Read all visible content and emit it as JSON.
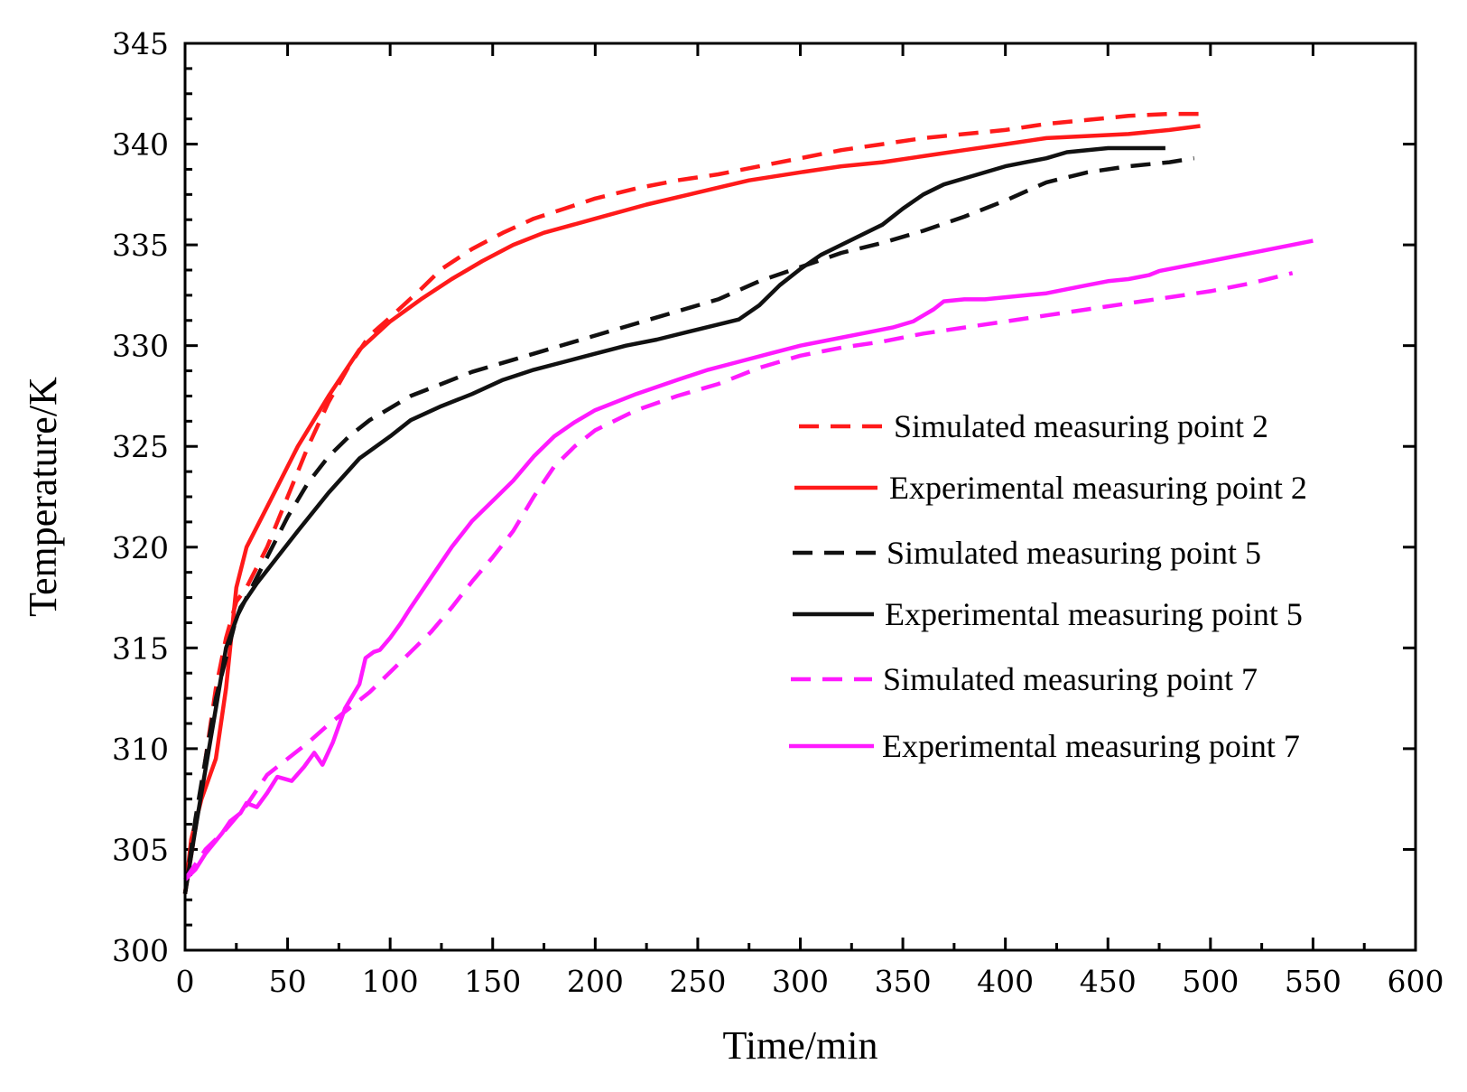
{
  "chart_data": {
    "type": "line",
    "title": "",
    "xlabel": "Time/min",
    "ylabel": "Temperature/K",
    "xlim": [
      0,
      600
    ],
    "ylim": [
      300,
      345
    ],
    "xticks": [
      "0",
      "50",
      "100",
      "150",
      "200",
      "250",
      "300",
      "350",
      "400",
      "450",
      "500",
      "550",
      "600"
    ],
    "yticks": [
      "300",
      "305",
      "310",
      "315",
      "320",
      "325",
      "330",
      "335",
      "340",
      "345"
    ],
    "legend_position": "right",
    "series": [
      {
        "name": "Simulated measuring point 2",
        "color": "#ff1a1a",
        "style": "dashed",
        "x": [
          0,
          5,
          10,
          15,
          20,
          25,
          30,
          40,
          50,
          60,
          70,
          80,
          90,
          100,
          115,
          125,
          140,
          155,
          170,
          185,
          200,
          220,
          240,
          260,
          280,
          300,
          320,
          340,
          360,
          380,
          400,
          420,
          440,
          460,
          480,
          495
        ],
        "y": [
          302.8,
          306,
          309.5,
          313,
          315.5,
          317.3,
          318,
          320,
          322.5,
          325,
          327.2,
          329,
          330.5,
          331.4,
          332.8,
          333.8,
          334.8,
          335.6,
          336.3,
          336.8,
          337.3,
          337.8,
          338.2,
          338.5,
          338.9,
          339.3,
          339.7,
          340,
          340.3,
          340.5,
          340.7,
          341,
          341.2,
          341.4,
          341.5,
          341.5
        ]
      },
      {
        "name": "Experimental measuring point 2",
        "color": "#ff1a1a",
        "style": "solid",
        "x": [
          0,
          3,
          8,
          15,
          20,
          25,
          30,
          40,
          55,
          70,
          85,
          100,
          115,
          130,
          145,
          160,
          175,
          200,
          225,
          250,
          275,
          300,
          320,
          340,
          360,
          380,
          400,
          420,
          440,
          460,
          480,
          495
        ],
        "y": [
          302.8,
          305.5,
          307.5,
          309.5,
          313,
          318,
          320,
          322,
          325,
          327.5,
          329.8,
          331.2,
          332.3,
          333.3,
          334.2,
          335,
          335.6,
          336.3,
          337,
          337.6,
          338.2,
          338.6,
          338.9,
          339.1,
          339.4,
          339.7,
          340,
          340.3,
          340.4,
          340.5,
          340.7,
          340.9
        ]
      },
      {
        "name": "Simulated measuring point 5",
        "color": "#111111",
        "style": "dashed",
        "x": [
          0,
          5,
          10,
          15,
          20,
          25,
          30,
          40,
          50,
          60,
          70,
          80,
          90,
          100,
          110,
          125,
          140,
          160,
          180,
          200,
          220,
          240,
          260,
          280,
          300,
          320,
          340,
          360,
          380,
          400,
          420,
          440,
          460,
          480,
          492
        ],
        "y": [
          302.8,
          306.5,
          309.5,
          312.5,
          314.5,
          316.5,
          317.5,
          319.5,
          321.5,
          323.2,
          324.5,
          325.5,
          326.3,
          326.9,
          327.5,
          328.1,
          328.7,
          329.3,
          329.9,
          330.5,
          331.1,
          331.7,
          332.3,
          333.2,
          333.9,
          334.6,
          335.1,
          335.7,
          336.4,
          337.2,
          338.1,
          338.6,
          338.9,
          339.1,
          339.3
        ]
      },
      {
        "name": "Experimental measuring point 5",
        "color": "#111111",
        "style": "solid",
        "x": [
          0,
          5,
          10,
          15,
          20,
          27,
          35,
          45,
          55,
          70,
          85,
          100,
          110,
          125,
          140,
          155,
          170,
          185,
          200,
          215,
          230,
          250,
          270,
          280,
          290,
          300,
          310,
          320,
          340,
          350,
          360,
          370,
          380,
          400,
          410,
          420,
          430,
          440,
          450,
          465,
          478
        ],
        "y": [
          302.8,
          306,
          309,
          312,
          315,
          317,
          318.2,
          319.5,
          320.8,
          322.7,
          324.4,
          325.5,
          326.3,
          327,
          327.6,
          328.3,
          328.8,
          329.2,
          329.6,
          330,
          330.3,
          330.8,
          331.3,
          332,
          333,
          333.8,
          334.5,
          335,
          336,
          336.8,
          337.5,
          338,
          338.3,
          338.9,
          339.1,
          339.3,
          339.6,
          339.7,
          339.8,
          339.8,
          339.8
        ]
      },
      {
        "name": "Simulated measuring point 7",
        "color": "#ff1aff",
        "style": "dashed",
        "x": [
          0,
          10,
          20,
          30,
          40,
          50,
          60,
          70,
          80,
          90,
          100,
          110,
          120,
          130,
          140,
          150,
          160,
          170,
          180,
          190,
          200,
          220,
          240,
          260,
          280,
          300,
          320,
          340,
          360,
          380,
          400,
          420,
          440,
          460,
          480,
          500,
          520,
          540
        ],
        "y": [
          303.5,
          305,
          306,
          307.2,
          308.7,
          309.5,
          310.3,
          311.2,
          312,
          312.8,
          313.8,
          314.8,
          315.8,
          317,
          318.3,
          319.5,
          320.8,
          322.5,
          324,
          325,
          325.8,
          326.8,
          327.5,
          328.1,
          328.9,
          329.5,
          329.9,
          330.2,
          330.6,
          330.9,
          331.2,
          331.5,
          331.8,
          332.1,
          332.4,
          332.7,
          333.1,
          333.6
        ]
      },
      {
        "name": "Experimental measuring point 7",
        "color": "#ff1aff",
        "style": "solid",
        "x": [
          0,
          5,
          10,
          18,
          22,
          27,
          30,
          35,
          40,
          45,
          52,
          58,
          63,
          67,
          72,
          78,
          85,
          88,
          92,
          95,
          100,
          105,
          110,
          120,
          130,
          140,
          150,
          160,
          170,
          180,
          190,
          200,
          220,
          240,
          255,
          270,
          285,
          300,
          315,
          330,
          345,
          355,
          365,
          370,
          380,
          390,
          400,
          410,
          420,
          430,
          440,
          450,
          460,
          470,
          475,
          490,
          510,
          530,
          550
        ],
        "y": [
          303.5,
          304,
          304.8,
          305.8,
          306.4,
          306.8,
          307.3,
          307.1,
          307.8,
          308.6,
          308.4,
          309.1,
          309.8,
          309.2,
          310.3,
          312,
          313.2,
          314.5,
          314.8,
          314.9,
          315.5,
          316.2,
          317,
          318.5,
          320,
          321.3,
          322.3,
          323.3,
          324.5,
          325.5,
          326.2,
          326.8,
          327.6,
          328.3,
          328.8,
          329.2,
          329.6,
          330,
          330.3,
          330.6,
          330.9,
          331.2,
          331.8,
          332.2,
          332.3,
          332.3,
          332.4,
          332.5,
          332.6,
          332.8,
          333,
          333.2,
          333.3,
          333.5,
          333.7,
          334,
          334.4,
          334.8,
          335.2
        ]
      }
    ]
  }
}
